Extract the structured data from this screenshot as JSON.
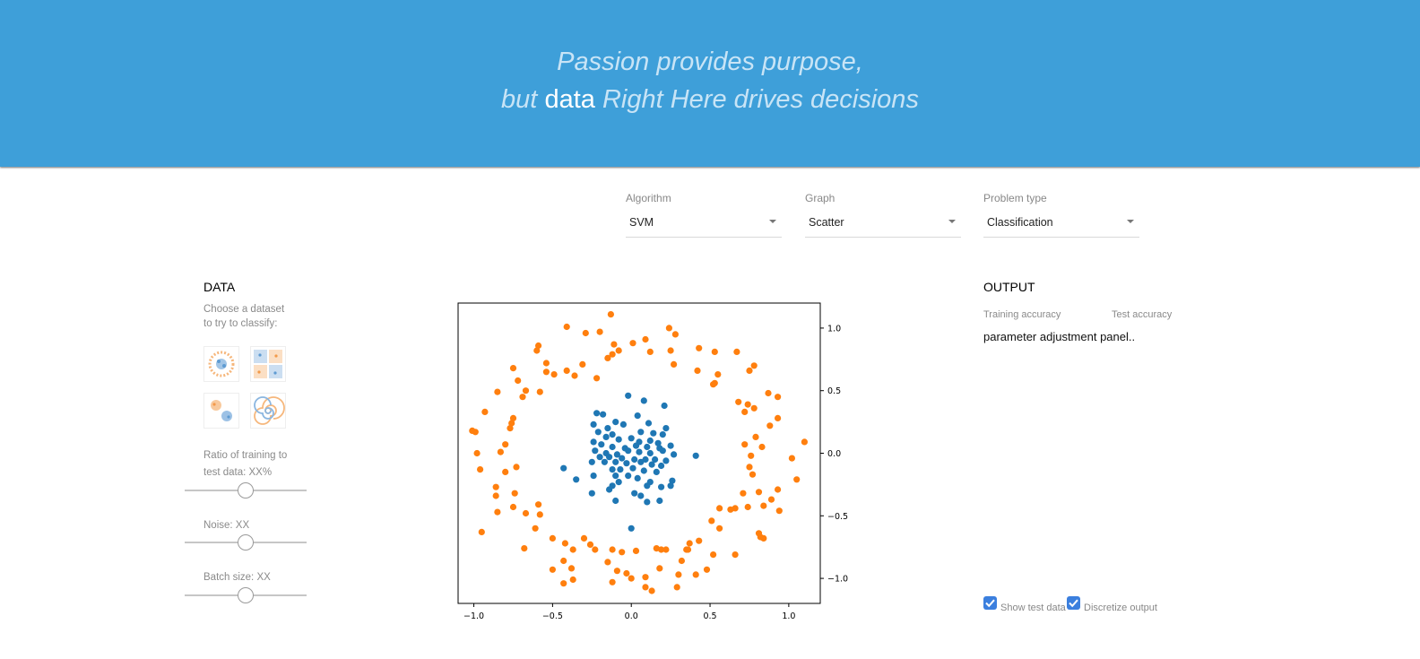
{
  "header": {
    "line1": "Passion provides purpose,",
    "line2_prefix": "but",
    "line2_strong": "data",
    "line2_suffix": "Right Here drives decisions"
  },
  "controls": {
    "algorithm": {
      "label": "Algorithm",
      "value": "SVM"
    },
    "graph": {
      "label": "Graph",
      "value": "Scatter"
    },
    "problem_type": {
      "label": "Problem type",
      "value": "Classification"
    }
  },
  "data_panel": {
    "title": "DATA",
    "subtitle_line1": "Choose a dataset",
    "subtitle_line2": "to try to classify:",
    "datasets": [
      {
        "icon": "circle-dataset-icon"
      },
      {
        "icon": "xor-dataset-icon"
      },
      {
        "icon": "gaussian-dataset-icon"
      },
      {
        "icon": "spiral-dataset-icon"
      }
    ],
    "ratio_label_line1": "Ratio of training to",
    "ratio_label_line2": "test data:  XX%",
    "ratio_value": 0.5,
    "noise_label": "Noise:  XX",
    "noise_value": 0.5,
    "batch_label": "Batch size:  XX",
    "batch_value": 0.5
  },
  "output_panel": {
    "title": "OUTPUT",
    "training_accuracy_label": "Training accuracy",
    "test_accuracy_label": "Test accuracy",
    "placeholder": "parameter adjustment panel..",
    "show_test_data": {
      "label": "Show test data",
      "checked": true
    },
    "discretize_output": {
      "label": "Discretize output",
      "checked": true
    }
  },
  "colors": {
    "header_bg": "#3e9fd9",
    "class_inner": "#1f77b4",
    "class_outer": "#ff7f0e",
    "checkbox": "#3b7fde"
  },
  "chart_data": {
    "type": "scatter",
    "xlim": [
      -1.1,
      1.2
    ],
    "ylim": [
      -1.2,
      1.2
    ],
    "x_ticks": [
      {
        "value": -1.0,
        "label": "−1.0"
      },
      {
        "value": -0.5,
        "label": "−0.5"
      },
      {
        "value": 0.0,
        "label": "0.0"
      },
      {
        "value": 0.5,
        "label": "0.5"
      },
      {
        "value": 1.0,
        "label": "1.0"
      }
    ],
    "y_ticks": [
      {
        "value": 1.0,
        "label": "1.0"
      },
      {
        "value": 0.5,
        "label": "0.5"
      },
      {
        "value": 0.0,
        "label": "0.0"
      },
      {
        "value": -0.5,
        "label": "−0.5"
      },
      {
        "value": -1.0,
        "label": "−1.0"
      }
    ],
    "y_axis_side": "right",
    "grid": false,
    "series": [
      {
        "color": "#1f77b4",
        "points": [
          [
            -0.02,
            0.46
          ],
          [
            0.08,
            0.42
          ],
          [
            0.21,
            0.38
          ],
          [
            -0.22,
            0.32
          ],
          [
            -0.18,
            0.31
          ],
          [
            -0.1,
            0.25
          ],
          [
            0.04,
            0.3
          ],
          [
            0.11,
            0.24
          ],
          [
            -0.24,
            0.23
          ],
          [
            -0.15,
            0.2
          ],
          [
            -0.05,
            0.23
          ],
          [
            0.22,
            0.2
          ],
          [
            -0.21,
            0.17
          ],
          [
            -0.12,
            0.15
          ],
          [
            0.06,
            0.17
          ],
          [
            0.14,
            0.16
          ],
          [
            0.2,
            0.15
          ],
          [
            -0.16,
            0.13
          ],
          [
            -0.08,
            0.11
          ],
          [
            0.0,
            0.12
          ],
          [
            0.05,
            0.09
          ],
          [
            0.12,
            0.1
          ],
          [
            0.17,
            0.08
          ],
          [
            0.25,
            0.06
          ],
          [
            -0.24,
            0.09
          ],
          [
            -0.19,
            0.07
          ],
          [
            -0.12,
            0.05
          ],
          [
            -0.04,
            0.04
          ],
          [
            0.03,
            0.06
          ],
          [
            0.1,
            0.05
          ],
          [
            0.18,
            0.04
          ],
          [
            -0.23,
            0.02
          ],
          [
            -0.16,
            0.0
          ],
          [
            -0.09,
            -0.01
          ],
          [
            -0.02,
            0.02
          ],
          [
            0.05,
            0.01
          ],
          [
            0.12,
            0.0
          ],
          [
            0.2,
            0.02
          ],
          [
            0.27,
            -0.01
          ],
          [
            0.41,
            -0.02
          ],
          [
            -0.2,
            -0.03
          ],
          [
            -0.14,
            -0.03
          ],
          [
            -0.06,
            -0.04
          ],
          [
            0.02,
            -0.05
          ],
          [
            0.09,
            -0.05
          ],
          [
            0.15,
            -0.05
          ],
          [
            0.22,
            -0.06
          ],
          [
            -0.25,
            -0.07
          ],
          [
            -0.17,
            -0.07
          ],
          [
            -0.1,
            -0.07
          ],
          [
            -0.03,
            -0.08
          ],
          [
            0.06,
            -0.07
          ],
          [
            0.13,
            -0.09
          ],
          [
            0.19,
            -0.1
          ],
          [
            -0.43,
            -0.12
          ],
          [
            -0.12,
            -0.13
          ],
          [
            -0.07,
            -0.13
          ],
          [
            0.01,
            -0.12
          ],
          [
            0.08,
            -0.14
          ],
          [
            0.16,
            -0.15
          ],
          [
            -0.24,
            -0.18
          ],
          [
            -0.1,
            -0.18
          ],
          [
            -0.35,
            -0.21
          ],
          [
            -0.02,
            -0.18
          ],
          [
            0.04,
            -0.2
          ],
          [
            0.12,
            -0.23
          ],
          [
            0.26,
            -0.22
          ],
          [
            -0.08,
            -0.23
          ],
          [
            -0.12,
            -0.26
          ],
          [
            0.1,
            -0.26
          ],
          [
            0.19,
            -0.27
          ],
          [
            0.25,
            -0.26
          ],
          [
            -0.25,
            -0.32
          ],
          [
            -0.14,
            -0.29
          ],
          [
            0.02,
            -0.32
          ],
          [
            0.06,
            -0.34
          ],
          [
            -0.1,
            -0.38
          ],
          [
            0.1,
            -0.39
          ],
          [
            0.18,
            -0.38
          ],
          [
            0.0,
            -0.6
          ]
        ]
      },
      {
        "color": "#ff7f0e",
        "points": [
          [
            -0.13,
            1.11
          ],
          [
            -0.41,
            1.01
          ],
          [
            -0.2,
            0.97
          ],
          [
            -0.29,
            0.96
          ],
          [
            0.24,
            1.0
          ],
          [
            0.28,
            0.95
          ],
          [
            -0.11,
            0.87
          ],
          [
            0.01,
            0.88
          ],
          [
            0.09,
            0.91
          ],
          [
            0.43,
            0.84
          ],
          [
            -0.59,
            0.86
          ],
          [
            -0.6,
            0.82
          ],
          [
            0.53,
            0.81
          ],
          [
            -0.12,
            0.79
          ],
          [
            -0.15,
            0.76
          ],
          [
            -0.08,
            0.82
          ],
          [
            0.12,
            0.81
          ],
          [
            0.25,
            0.82
          ],
          [
            0.67,
            0.81
          ],
          [
            0.78,
            0.7
          ],
          [
            -0.54,
            0.72
          ],
          [
            -0.31,
            0.71
          ],
          [
            -0.75,
            0.68
          ],
          [
            0.27,
            0.71
          ],
          [
            0.42,
            0.66
          ],
          [
            0.75,
            0.66
          ],
          [
            -0.54,
            0.65
          ],
          [
            -0.41,
            0.66
          ],
          [
            -0.49,
            0.63
          ],
          [
            0.55,
            0.63
          ],
          [
            0.53,
            0.56
          ],
          [
            0.52,
            0.55
          ],
          [
            -0.72,
            0.58
          ],
          [
            -0.36,
            0.62
          ],
          [
            -0.67,
            0.5
          ],
          [
            -0.58,
            0.49
          ],
          [
            -0.85,
            0.49
          ],
          [
            -0.69,
            0.45
          ],
          [
            -0.22,
            0.6
          ],
          [
            0.87,
            0.48
          ],
          [
            0.93,
            0.45
          ],
          [
            0.68,
            0.41
          ],
          [
            0.74,
            0.39
          ],
          [
            0.78,
            0.36
          ],
          [
            -0.93,
            0.33
          ],
          [
            0.72,
            0.33
          ],
          [
            0.93,
            0.28
          ],
          [
            -0.75,
            0.28
          ],
          [
            -0.76,
            0.24
          ],
          [
            0.88,
            0.22
          ],
          [
            -1.01,
            0.18
          ],
          [
            -0.99,
            0.17
          ],
          [
            -0.77,
            0.2
          ],
          [
            0.79,
            0.13
          ],
          [
            0.72,
            0.07
          ],
          [
            1.1,
            0.09
          ],
          [
            -0.8,
            0.07
          ],
          [
            0.83,
            0.05
          ],
          [
            -0.98,
            0.0
          ],
          [
            -0.83,
            0.01
          ],
          [
            1.02,
            -0.04
          ],
          [
            0.76,
            -0.02
          ],
          [
            -0.73,
            -0.11
          ],
          [
            0.75,
            -0.11
          ],
          [
            -0.96,
            -0.13
          ],
          [
            -0.8,
            -0.15
          ],
          [
            1.05,
            -0.21
          ],
          [
            0.77,
            -0.17
          ],
          [
            -0.86,
            -0.27
          ],
          [
            -0.74,
            -0.32
          ],
          [
            0.93,
            -0.29
          ],
          [
            -0.86,
            -0.34
          ],
          [
            0.81,
            -0.31
          ],
          [
            0.71,
            -0.32
          ],
          [
            0.66,
            -0.44
          ],
          [
            0.74,
            -0.43
          ],
          [
            0.89,
            -0.37
          ],
          [
            0.84,
            -0.42
          ],
          [
            0.94,
            -0.46
          ],
          [
            0.63,
            -0.45
          ],
          [
            0.56,
            -0.44
          ],
          [
            -0.85,
            -0.47
          ],
          [
            -0.75,
            -0.43
          ],
          [
            -0.59,
            -0.41
          ],
          [
            -0.67,
            -0.48
          ],
          [
            -0.58,
            -0.49
          ],
          [
            -0.61,
            -0.6
          ],
          [
            -0.95,
            -0.63
          ],
          [
            0.51,
            -0.54
          ],
          [
            0.56,
            -0.6
          ],
          [
            0.81,
            -0.64
          ],
          [
            0.82,
            -0.67
          ],
          [
            0.84,
            -0.68
          ],
          [
            -0.5,
            -0.68
          ],
          [
            -0.3,
            -0.68
          ],
          [
            -0.42,
            -0.72
          ],
          [
            -0.26,
            -0.73
          ],
          [
            0.37,
            -0.72
          ],
          [
            0.43,
            -0.7
          ],
          [
            0.16,
            -0.76
          ],
          [
            -0.68,
            -0.76
          ],
          [
            -0.23,
            -0.77
          ],
          [
            -0.37,
            -0.77
          ],
          [
            -0.12,
            -0.77
          ],
          [
            -0.06,
            -0.79
          ],
          [
            0.03,
            -0.78
          ],
          [
            0.19,
            -0.77
          ],
          [
            0.22,
            -0.77
          ],
          [
            0.35,
            -0.77
          ],
          [
            0.36,
            -0.77
          ],
          [
            0.66,
            -0.81
          ],
          [
            0.52,
            -0.81
          ],
          [
            -0.43,
            -0.86
          ],
          [
            -0.15,
            -0.87
          ],
          [
            0.32,
            -0.86
          ],
          [
            -0.5,
            -0.93
          ],
          [
            -0.38,
            -0.92
          ],
          [
            0.18,
            -0.92
          ],
          [
            0.48,
            -0.93
          ],
          [
            -0.09,
            -0.94
          ],
          [
            -0.03,
            -0.96
          ],
          [
            0.09,
            -0.99
          ],
          [
            0.3,
            -0.97
          ],
          [
            0.41,
            -0.97
          ],
          [
            -0.37,
            -1.01
          ],
          [
            0.0,
            -1.0
          ],
          [
            -0.12,
            -1.03
          ],
          [
            -0.43,
            -1.04
          ],
          [
            0.09,
            -1.07
          ],
          [
            0.29,
            -1.07
          ],
          [
            0.13,
            -1.1
          ]
        ]
      }
    ]
  }
}
